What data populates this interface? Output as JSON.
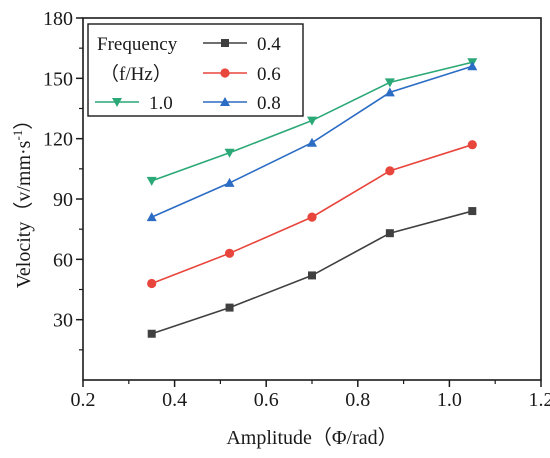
{
  "chart_data": {
    "type": "line",
    "xlabel": "Amplitude（Φ/rad）",
    "ylabel_main": "Velocity（v/mm·s",
    "ylabel_sup": "-1",
    "ylabel_close": "）",
    "xlim": [
      0.2,
      1.2
    ],
    "ylim": [
      0,
      180
    ],
    "xticks": [
      0.2,
      0.4,
      0.6,
      0.8,
      1.0,
      1.2
    ],
    "xtick_labels": [
      "0.2",
      "0.4",
      "0.6",
      "0.8",
      "1.0",
      "1.2"
    ],
    "yticks": [
      30,
      60,
      90,
      120,
      150,
      180
    ],
    "ytick_labels": [
      "30",
      "60",
      "90",
      "120",
      "150",
      "180"
    ],
    "grid": false,
    "legend": {
      "placement": "top-left",
      "title_line1": "Frequency",
      "title_line2": "（f/Hz）"
    },
    "x": [
      0.35,
      0.52,
      0.7,
      0.87,
      1.05
    ],
    "series": [
      {
        "name": "0.4",
        "color": "#404040",
        "marker": "square",
        "values": [
          23,
          36,
          52,
          73,
          84
        ]
      },
      {
        "name": "0.6",
        "color": "#e8453c",
        "marker": "circle",
        "values": [
          48,
          63,
          81,
          104,
          117
        ]
      },
      {
        "name": "1.0",
        "color": "#2aa876",
        "marker": "triangle-down",
        "values": [
          99,
          113,
          129,
          148,
          158
        ]
      },
      {
        "name": "0.8",
        "color": "#2b6cc4",
        "marker": "triangle-up",
        "values": [
          81,
          98,
          118,
          143,
          156
        ]
      }
    ]
  }
}
